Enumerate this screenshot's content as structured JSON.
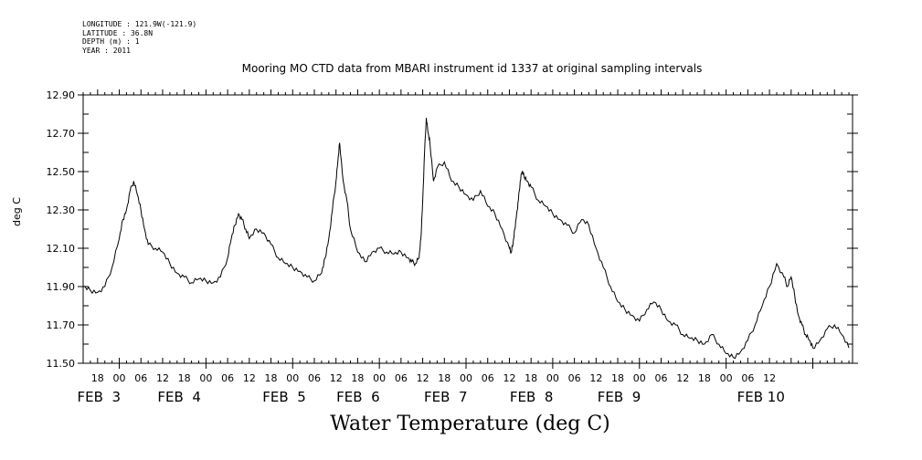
{
  "meta": {
    "longitude": "LONGITUDE : 121.9W(-121.9)",
    "latitude": "LATITUDE : 36.8N",
    "depth": "DEPTH (m) : 1",
    "year": "YEAR : 2011"
  },
  "chart_data": {
    "type": "line",
    "title": "Mooring MO CTD data from MBARI instrument id 1337 at original sampling intervals",
    "xlabel": "Water Temperature (deg C)",
    "ylabel": "deg C",
    "ylim": [
      11.5,
      12.9
    ],
    "xlim_hours": [
      -10,
      203
    ],
    "y_ticks": [
      "12.90",
      "12.70",
      "12.50",
      "12.30",
      "12.10",
      "11.90",
      "11.70",
      "11.50"
    ],
    "hour_ticks": [
      "18",
      "00",
      "06",
      "12",
      "18",
      "00",
      "06",
      "12",
      "18",
      "00",
      "06",
      "12",
      "18",
      "00",
      "06",
      "12",
      "18",
      "00",
      "06",
      "12",
      "18",
      "00",
      "06",
      "12",
      "18",
      "00",
      "06",
      "12",
      "18",
      "00",
      "06",
      "12"
    ],
    "date_labels": [
      "FEB  3",
      "FEB  4",
      "FEB  5",
      "FEB  6",
      "FEB  7",
      "FEB  8",
      "FEB  9",
      "FEB 10"
    ],
    "grid": false,
    "series": [
      {
        "x": [
          -10,
          -8,
          -6,
          -4,
          -2,
          0,
          1,
          2,
          3,
          4,
          5,
          6,
          7,
          8,
          10,
          12,
          14,
          16,
          18,
          20,
          22,
          24,
          26,
          28,
          30,
          31,
          32,
          33,
          34,
          35,
          36,
          38,
          40,
          42,
          44,
          46,
          48,
          50,
          52,
          54,
          56,
          57,
          58,
          59,
          60,
          60.5,
          61,
          62,
          63,
          64,
          66,
          68,
          70,
          72,
          74,
          76,
          78,
          80,
          81,
          82,
          83,
          83.5,
          84,
          84.5,
          85,
          85.5,
          86,
          87,
          88,
          90,
          92,
          94,
          96,
          98,
          100,
          102,
          104,
          106,
          108,
          108.5,
          109,
          109.5,
          110,
          110.5,
          111,
          111.5,
          112,
          113,
          114,
          116,
          118,
          120,
          122,
          124,
          126,
          128,
          130,
          132,
          134,
          136,
          138,
          140,
          142,
          144,
          146,
          148,
          150,
          152,
          154,
          156,
          158,
          160,
          162,
          164,
          166,
          168,
          170,
          172,
          174,
          176,
          178,
          180,
          182,
          184,
          185,
          186,
          187,
          188,
          189,
          190,
          191,
          192,
          194,
          196,
          198,
          200,
          202
        ],
        "y": [
          11.9,
          11.88,
          11.87,
          11.9,
          12.0,
          12.15,
          12.25,
          12.3,
          12.4,
          12.45,
          12.38,
          12.3,
          12.2,
          12.12,
          12.1,
          12.08,
          12.02,
          11.97,
          11.95,
          11.92,
          11.94,
          11.93,
          11.92,
          11.95,
          12.05,
          12.15,
          12.22,
          12.28,
          12.25,
          12.2,
          12.15,
          12.2,
          12.18,
          12.12,
          12.05,
          12.02,
          12.0,
          11.98,
          11.95,
          11.93,
          11.97,
          12.05,
          12.15,
          12.3,
          12.45,
          12.55,
          12.65,
          12.45,
          12.35,
          12.2,
          12.08,
          12.03,
          12.08,
          12.1,
          12.08,
          12.07,
          12.08,
          12.05,
          12.03,
          12.02,
          12.05,
          12.15,
          12.35,
          12.6,
          12.78,
          12.7,
          12.65,
          12.45,
          12.52,
          12.55,
          12.45,
          12.42,
          12.38,
          12.35,
          12.4,
          12.32,
          12.28,
          12.2,
          12.1,
          12.08,
          12.12,
          12.2,
          12.28,
          12.35,
          12.45,
          12.5,
          12.48,
          12.45,
          12.42,
          12.35,
          12.32,
          12.28,
          12.25,
          12.22,
          12.18,
          12.25,
          12.22,
          12.1,
          12.0,
          11.9,
          11.82,
          11.78,
          11.75,
          11.72,
          11.78,
          11.82,
          11.78,
          11.72,
          11.7,
          11.65,
          11.63,
          11.62,
          11.6,
          11.65,
          11.6,
          11.55,
          11.53,
          11.56,
          11.62,
          11.7,
          11.8,
          11.9,
          12.02,
          11.95,
          11.9,
          11.95,
          11.85,
          11.75,
          11.7,
          11.65,
          11.62,
          11.58,
          11.62,
          11.68,
          11.7,
          11.65,
          11.58
        ]
      }
    ]
  }
}
